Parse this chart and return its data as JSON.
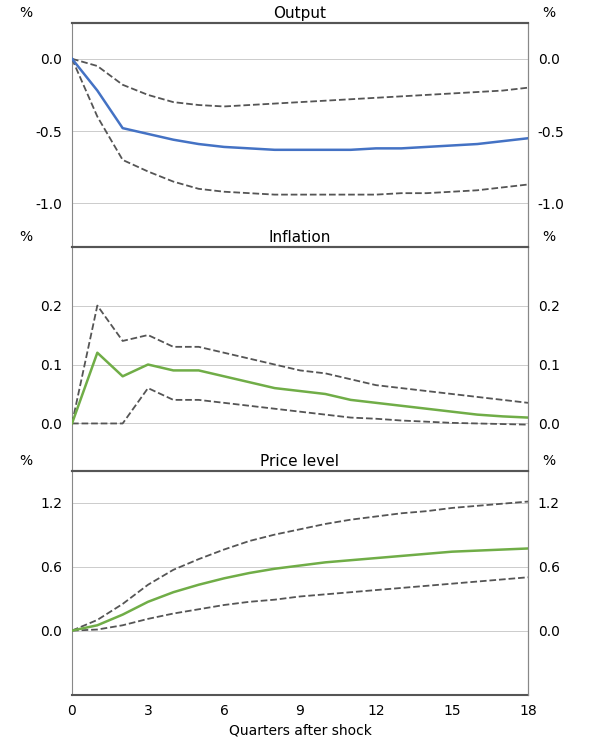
{
  "quarters": [
    0,
    1,
    2,
    3,
    4,
    5,
    6,
    7,
    8,
    9,
    10,
    11,
    12,
    13,
    14,
    15,
    16,
    17,
    18
  ],
  "output_center": [
    0.0,
    -0.22,
    -0.48,
    -0.52,
    -0.56,
    -0.59,
    -0.61,
    -0.62,
    -0.63,
    -0.63,
    -0.63,
    -0.63,
    -0.62,
    -0.62,
    -0.61,
    -0.6,
    -0.59,
    -0.57,
    -0.55
  ],
  "output_upper": [
    0.0,
    -0.05,
    -0.18,
    -0.25,
    -0.3,
    -0.32,
    -0.33,
    -0.32,
    -0.31,
    -0.3,
    -0.29,
    -0.28,
    -0.27,
    -0.26,
    -0.25,
    -0.24,
    -0.23,
    -0.22,
    -0.2
  ],
  "output_lower": [
    0.0,
    -0.4,
    -0.7,
    -0.78,
    -0.85,
    -0.9,
    -0.92,
    -0.93,
    -0.94,
    -0.94,
    -0.94,
    -0.94,
    -0.94,
    -0.93,
    -0.93,
    -0.92,
    -0.91,
    -0.89,
    -0.87
  ],
  "inflation_center": [
    0.0,
    0.12,
    0.08,
    0.1,
    0.09,
    0.09,
    0.08,
    0.07,
    0.06,
    0.055,
    0.05,
    0.04,
    0.035,
    0.03,
    0.025,
    0.02,
    0.015,
    0.012,
    0.01
  ],
  "inflation_upper": [
    0.0,
    0.2,
    0.14,
    0.15,
    0.13,
    0.13,
    0.12,
    0.11,
    0.1,
    0.09,
    0.085,
    0.075,
    0.065,
    0.06,
    0.055,
    0.05,
    0.045,
    0.04,
    0.035
  ],
  "inflation_lower": [
    0.0,
    0.0,
    0.0,
    0.06,
    0.04,
    0.04,
    0.035,
    0.03,
    0.025,
    0.02,
    0.015,
    0.01,
    0.008,
    0.005,
    0.003,
    0.001,
    0.0,
    -0.001,
    -0.002
  ],
  "pricelevel_center": [
    0.0,
    0.05,
    0.15,
    0.27,
    0.36,
    0.43,
    0.49,
    0.54,
    0.58,
    0.61,
    0.64,
    0.66,
    0.68,
    0.7,
    0.72,
    0.74,
    0.75,
    0.76,
    0.77
  ],
  "pricelevel_upper": [
    0.0,
    0.1,
    0.25,
    0.43,
    0.57,
    0.67,
    0.76,
    0.84,
    0.9,
    0.95,
    1.0,
    1.04,
    1.07,
    1.1,
    1.12,
    1.15,
    1.17,
    1.19,
    1.21
  ],
  "pricelevel_lower": [
    0.0,
    0.01,
    0.05,
    0.11,
    0.16,
    0.2,
    0.24,
    0.27,
    0.29,
    0.32,
    0.34,
    0.36,
    0.38,
    0.4,
    0.42,
    0.44,
    0.46,
    0.48,
    0.5
  ],
  "color_output": "#4472C4",
  "color_inflation": "#70AD47",
  "color_pricelevel": "#70AD47",
  "color_ci": "#555555",
  "title_output": "Output",
  "title_inflation": "Inflation",
  "title_pricelevel": "Price level",
  "xlabel": "Quarters after shock",
  "output_ylim": [
    -1.3,
    0.25
  ],
  "output_yticks": [
    0.0,
    -0.5,
    -1.0
  ],
  "inflation_ylim": [
    -0.08,
    0.3
  ],
  "inflation_yticks": [
    0.0,
    0.1,
    0.2
  ],
  "pricelevel_ylim": [
    -0.6,
    1.5
  ],
  "pricelevel_yticks": [
    0.0,
    0.6,
    1.2
  ],
  "xticks": [
    0,
    3,
    6,
    9,
    12,
    15,
    18
  ],
  "xlim": [
    0,
    18
  ]
}
